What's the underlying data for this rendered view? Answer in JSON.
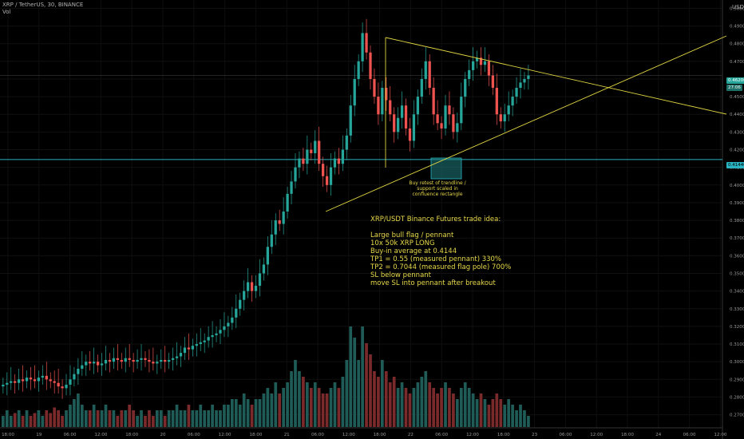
{
  "header": {
    "symbol_line": "XRP / TetherUS, 30, BINANCE",
    "indicator": "Vol",
    "axis_unit": "USDT"
  },
  "prices": {
    "current_price_label": "0.46200",
    "current_time_label": "27:06",
    "support_price_label": "0.41440"
  },
  "colors": {
    "background": "#000000",
    "up": "#26a69a",
    "down": "#ef5350",
    "trendline": "#e0d441",
    "support": "#2ab3c0",
    "rectangle": "#1f7e80"
  },
  "annotations": {
    "rectangle_note": "Buy retest of trendline / support\nscaled in confluence rectangle",
    "trade_idea": "XRP/USDT Binance Futures trade idea:\n\nLarge bull flag / pennant\n10x 50k XRP LONG\nBuy-in average at 0.4144\nTP1 = 0.55 (measured pennant) 330%\nTP2 = 0.7044 (measured flag pole) 700%\nSL below pennant\nmove SL into pennant after breakout"
  },
  "chart_data": {
    "type": "candlestick",
    "y_axis_ticks": [
      "0.50000",
      "0.49000",
      "0.48000",
      "0.47000",
      "0.46000",
      "0.45000",
      "0.44000",
      "0.43000",
      "0.42000",
      "0.41000",
      "0.40000",
      "0.39000",
      "0.38000",
      "0.37000",
      "0.36000",
      "0.35000",
      "0.34000",
      "0.33000",
      "0.32000",
      "0.31000",
      "0.30000",
      "0.29000",
      "0.28000",
      "0.27000"
    ],
    "x_axis_ticks": [
      "18:00",
      "19",
      "06:00",
      "12:00",
      "18:00",
      "20",
      "06:00",
      "12:00",
      "18:00",
      "21",
      "06:00",
      "12:00",
      "18:00",
      "22",
      "06:00",
      "12:00",
      "18:00",
      "23",
      "06:00",
      "12:00",
      "18:00",
      "24",
      "06:00",
      "12:00"
    ],
    "ylim": [
      0.268,
      0.502
    ],
    "support_level": 0.4144,
    "current_price": 0.462,
    "trend_pennant_top": [
      [
        0.4866,
        0.4646
      ],
      [
        0.443,
        0.443
      ]
    ],
    "candle_closes": [
      0.287,
      0.288,
      0.289,
      0.288,
      0.29,
      0.289,
      0.291,
      0.29,
      0.289,
      0.291,
      0.292,
      0.29,
      0.289,
      0.288,
      0.286,
      0.285,
      0.287,
      0.29,
      0.293,
      0.296,
      0.298,
      0.3,
      0.299,
      0.3,
      0.298,
      0.299,
      0.301,
      0.3,
      0.302,
      0.301,
      0.3,
      0.302,
      0.301,
      0.3,
      0.301,
      0.302,
      0.301,
      0.3,
      0.299,
      0.3,
      0.301,
      0.3,
      0.301,
      0.302,
      0.303,
      0.305,
      0.308,
      0.307,
      0.309,
      0.31,
      0.311,
      0.312,
      0.314,
      0.315,
      0.316,
      0.318,
      0.32,
      0.322,
      0.325,
      0.33,
      0.335,
      0.34,
      0.345,
      0.34,
      0.343,
      0.35,
      0.355,
      0.365,
      0.372,
      0.38,
      0.378,
      0.385,
      0.395,
      0.402,
      0.41,
      0.415,
      0.412,
      0.42,
      0.418,
      0.425,
      0.412,
      0.405,
      0.4,
      0.41,
      0.415,
      0.412,
      0.42,
      0.428,
      0.445,
      0.46,
      0.47,
      0.486,
      0.475,
      0.46,
      0.45,
      0.44,
      0.455,
      0.448,
      0.44,
      0.43,
      0.438,
      0.445,
      0.432,
      0.425,
      0.44,
      0.45,
      0.46,
      0.47,
      0.455,
      0.44,
      0.435,
      0.432,
      0.445,
      0.44,
      0.43,
      0.435,
      0.45,
      0.46,
      0.465,
      0.47,
      0.472,
      0.468,
      0.47,
      0.462,
      0.455,
      0.44,
      0.436,
      0.44,
      0.445,
      0.45,
      0.455,
      0.458,
      0.46,
      0.462
    ],
    "volumes": [
      0.2,
      0.3,
      0.2,
      0.25,
      0.3,
      0.2,
      0.3,
      0.2,
      0.25,
      0.3,
      0.2,
      0.3,
      0.25,
      0.35,
      0.3,
      0.2,
      0.3,
      0.4,
      0.5,
      0.6,
      0.4,
      0.3,
      0.3,
      0.4,
      0.3,
      0.3,
      0.4,
      0.3,
      0.3,
      0.2,
      0.3,
      0.3,
      0.4,
      0.3,
      0.2,
      0.3,
      0.2,
      0.3,
      0.2,
      0.3,
      0.3,
      0.2,
      0.3,
      0.3,
      0.4,
      0.3,
      0.3,
      0.4,
      0.3,
      0.3,
      0.4,
      0.3,
      0.3,
      0.4,
      0.3,
      0.3,
      0.4,
      0.4,
      0.5,
      0.5,
      0.4,
      0.6,
      0.5,
      0.4,
      0.5,
      0.5,
      0.6,
      0.7,
      0.6,
      0.8,
      0.6,
      0.7,
      0.8,
      1.0,
      1.2,
      1.0,
      0.9,
      0.8,
      0.7,
      0.8,
      0.7,
      0.6,
      0.6,
      0.7,
      0.8,
      0.7,
      0.9,
      1.2,
      1.8,
      1.6,
      1.2,
      1.8,
      1.5,
      1.3,
      1.0,
      0.9,
      1.2,
      1.0,
      0.8,
      0.9,
      0.7,
      0.8,
      0.7,
      0.6,
      0.7,
      0.8,
      0.9,
      1.0,
      0.8,
      0.7,
      0.6,
      0.7,
      0.8,
      0.7,
      0.6,
      0.5,
      0.7,
      0.8,
      0.7,
      0.6,
      0.5,
      0.6,
      0.5,
      0.4,
      0.5,
      0.6,
      0.5,
      0.4,
      0.5,
      0.4,
      0.3,
      0.4,
      0.3,
      0.2
    ]
  }
}
